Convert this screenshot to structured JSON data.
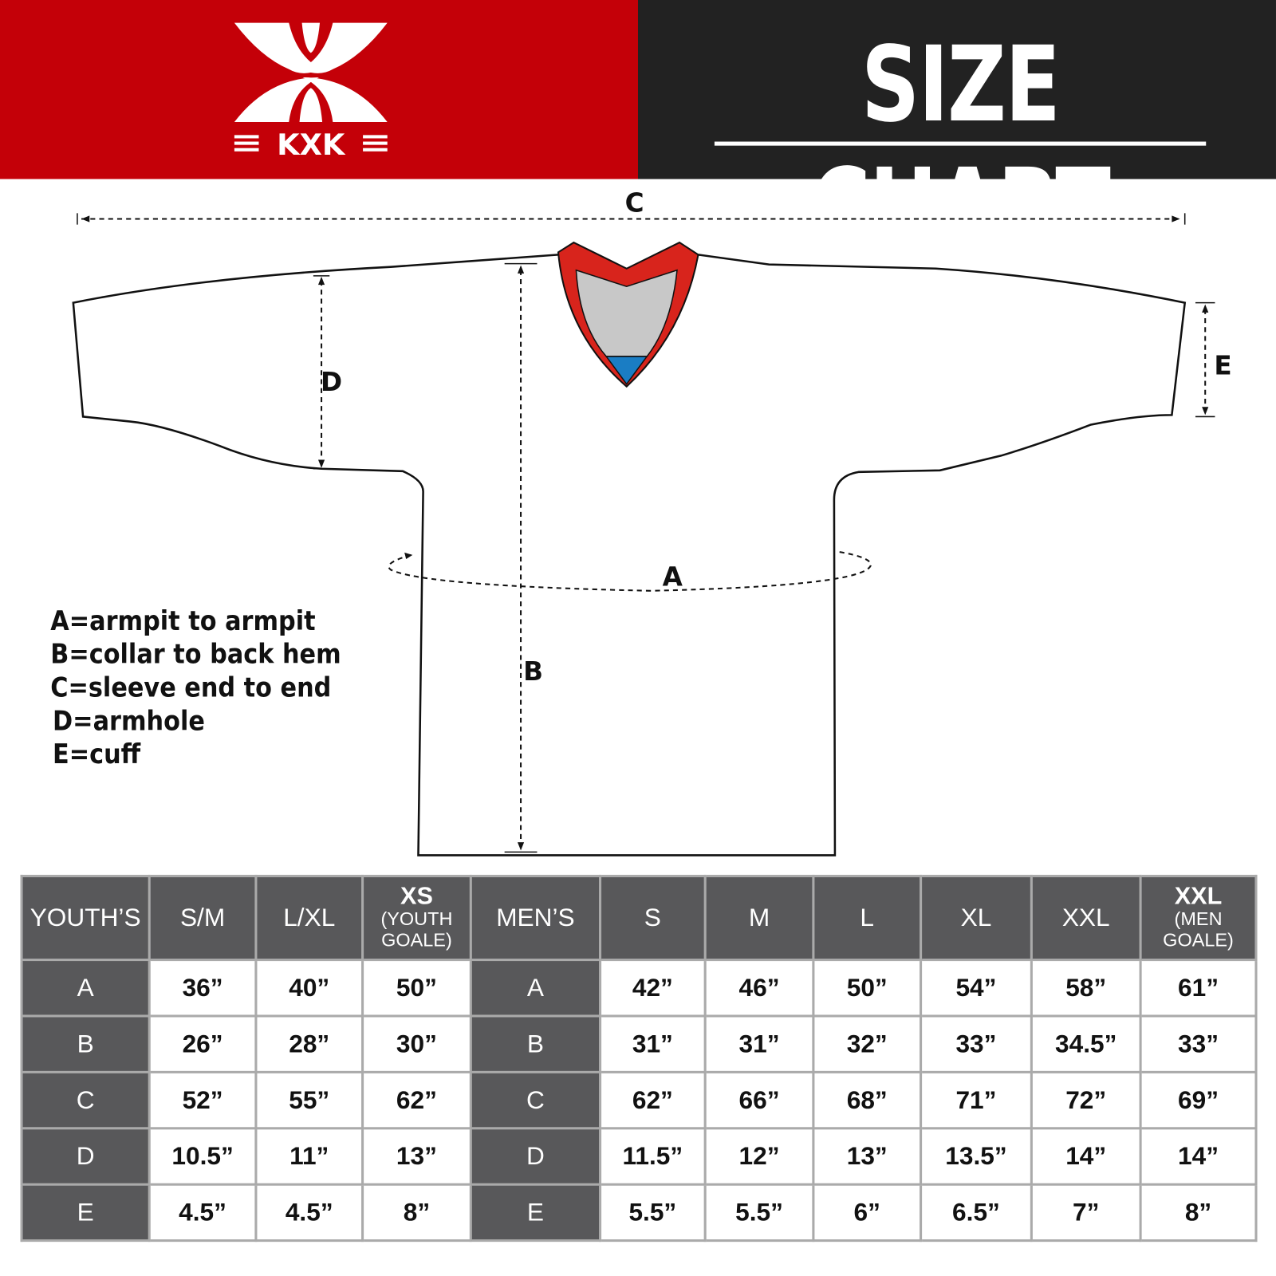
{
  "logo": {
    "text": "KXK",
    "colors": {
      "background": "#c40008",
      "mark": "#ffffff"
    }
  },
  "header": {
    "title": "SIZE CHART",
    "background": "#222222"
  },
  "diagram": {
    "labels": {
      "a": "A",
      "b": "B",
      "c": "C",
      "d": "D",
      "e": "E"
    },
    "collar_colors": {
      "trim": "#d8241c",
      "inner": "#c8c8c8",
      "tip": "#1a7dc4"
    }
  },
  "legend": [
    "A=armpit to armpit",
    "B=collar to back hem",
    "C=sleeve end to end",
    "D=armhole",
    "E=cuff"
  ],
  "table": {
    "youth_header": "YOUTH’S",
    "youth_sizes": [
      {
        "main": "S/M"
      },
      {
        "main": "L/XL"
      },
      {
        "main": "XS",
        "sub1": "(YOUTH",
        "sub2": "GOALE)"
      }
    ],
    "men_header": "MEN’S",
    "men_sizes": [
      {
        "main": "S"
      },
      {
        "main": "M"
      },
      {
        "main": "L"
      },
      {
        "main": "XL"
      },
      {
        "main": "XXL"
      },
      {
        "main": "XXL",
        "sub1": "(MEN",
        "sub2": "GOALE)"
      }
    ],
    "rows": [
      {
        "label": "A",
        "youth": [
          "36”",
          "40”",
          "50”"
        ],
        "men": [
          "42”",
          "46”",
          "50”",
          "54”",
          "58”",
          "61”"
        ]
      },
      {
        "label": "B",
        "youth": [
          "26”",
          "28”",
          "30”"
        ],
        "men": [
          "31”",
          "31”",
          "32”",
          "33”",
          "34.5”",
          "33”"
        ]
      },
      {
        "label": "C",
        "youth": [
          "52”",
          "55”",
          "62”"
        ],
        "men": [
          "62”",
          "66”",
          "68”",
          "71”",
          "72”",
          "69”"
        ]
      },
      {
        "label": "D",
        "youth": [
          "10.5”",
          "11”",
          "13”"
        ],
        "men": [
          "11.5”",
          "12”",
          "13”",
          "13.5”",
          "14”",
          "14”"
        ]
      },
      {
        "label": "E",
        "youth": [
          "4.5”",
          "4.5”",
          "8”"
        ],
        "men": [
          "5.5”",
          "5.5”",
          "6”",
          "6.5”",
          "7”",
          "8”"
        ]
      }
    ]
  }
}
